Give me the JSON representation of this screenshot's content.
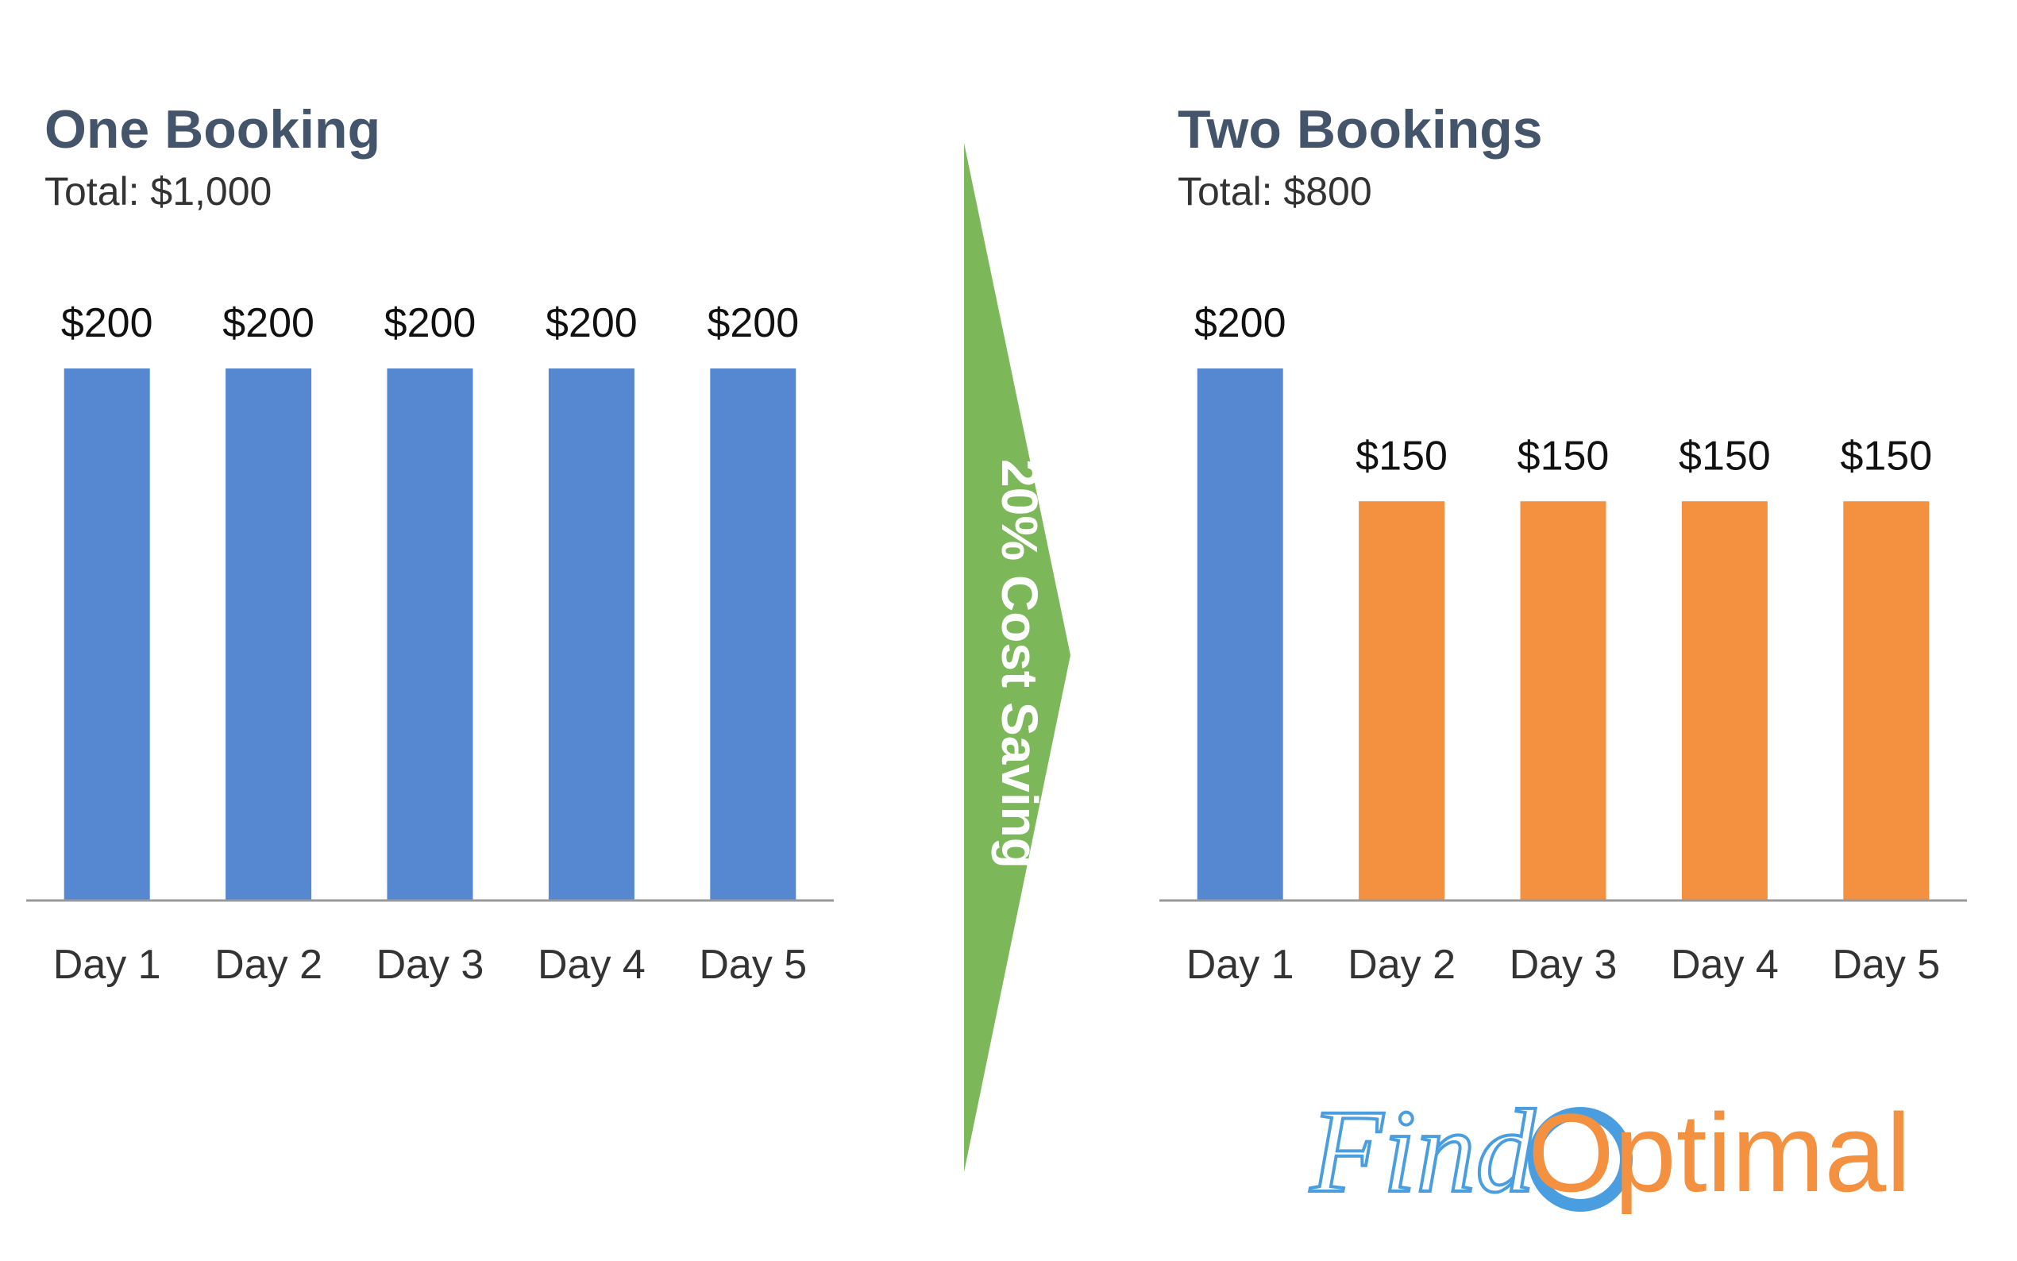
{
  "chart_data": [
    {
      "type": "bar",
      "title": "One Booking",
      "subtitle": "Total: $1,000",
      "categories": [
        "Day 1",
        "Day 2",
        "Day 3",
        "Day 4",
        "Day 5"
      ],
      "values": [
        200,
        200,
        200,
        200,
        200
      ],
      "value_labels": [
        "$200",
        "$200",
        "$200",
        "$200",
        "$200"
      ],
      "color": "#5588d0"
    },
    {
      "type": "bar",
      "title": "Two Bookings",
      "subtitle": "Total: $800",
      "categories": [
        "Day 1",
        "Day 2",
        "Day 3",
        "Day 4",
        "Day 5"
      ],
      "values": [
        200,
        150,
        150,
        150,
        150
      ],
      "value_labels": [
        "$200",
        "$150",
        "$150",
        "$150",
        "$150"
      ],
      "colors": [
        "#5588d0",
        "#f39140",
        "#f39140",
        "#f39140",
        "#f39140"
      ]
    }
  ],
  "annotation": "20% Cost Saving",
  "logo": {
    "script": "Find",
    "word": "Optimal"
  }
}
